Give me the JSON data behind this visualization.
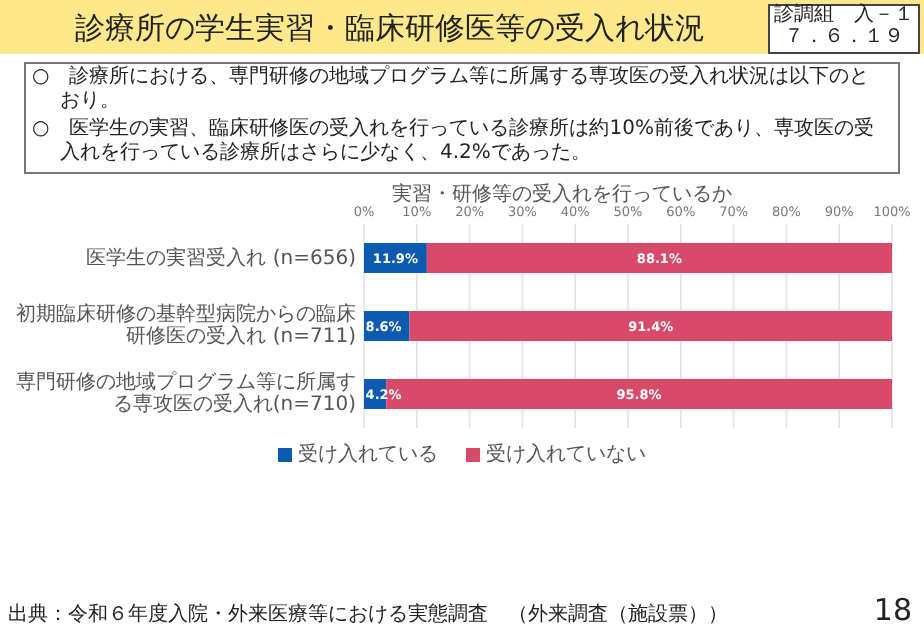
{
  "chart_data": {
    "type": "bar",
    "orientation": "horizontal",
    "stacked": true,
    "title": "実習・研修等の受入れを行っているか",
    "categories": [
      "医学生の実習受入れ (n=656)",
      "初期臨床研修の基幹型病院からの臨床研修医の受入れ (n=711)",
      "専門研修の地域プログラム等に所属する専攻医の受入れ(n=710)"
    ],
    "series": [
      {
        "name": "受け入れている",
        "color": "#0c5bb0",
        "values": [
          11.9,
          8.6,
          4.2
        ],
        "value_labels": [
          "11.9%",
          "8.6%",
          "4.2%"
        ]
      },
      {
        "name": "受け入れていない",
        "color": "#d94a6a",
        "values": [
          88.1,
          91.4,
          95.8
        ],
        "value_labels": [
          "88.1%",
          "91.4%",
          "95.8%"
        ]
      }
    ],
    "xlim": [
      0,
      100
    ],
    "xticks": [
      {
        "value": 0,
        "label": "0%"
      },
      {
        "value": 10,
        "label": "10%"
      },
      {
        "value": 20,
        "label": "20%"
      },
      {
        "value": 30,
        "label": "30%"
      },
      {
        "value": 40,
        "label": "40%"
      },
      {
        "value": 50,
        "label": "50%"
      },
      {
        "value": 60,
        "label": "60%"
      },
      {
        "value": 70,
        "label": "70%"
      },
      {
        "value": 80,
        "label": "80%"
      },
      {
        "value": 90,
        "label": "90%"
      },
      {
        "value": 100,
        "label": "100%"
      }
    ],
    "grid": "x",
    "legend": "bottom",
    "annotations": [
      "診療所の学生実習・臨床研修医等の受入れ状況",
      "診調組　入－１",
      "７．６．１９",
      "○　診療所における、専門研修の地域プログラム等に所属する専攻医の受入れ状況は以下のとおり。",
      "○　医学生の実習、臨床研修医の受入れを行っている診療所は約10%前後であり、専攻医の受入れを行っている診療所はさらに少なく、4.2%であった。",
      "出典：令和６年度入院・外来医療等における実態調査　（外来調査（施設票））",
      "18"
    ]
  }
}
